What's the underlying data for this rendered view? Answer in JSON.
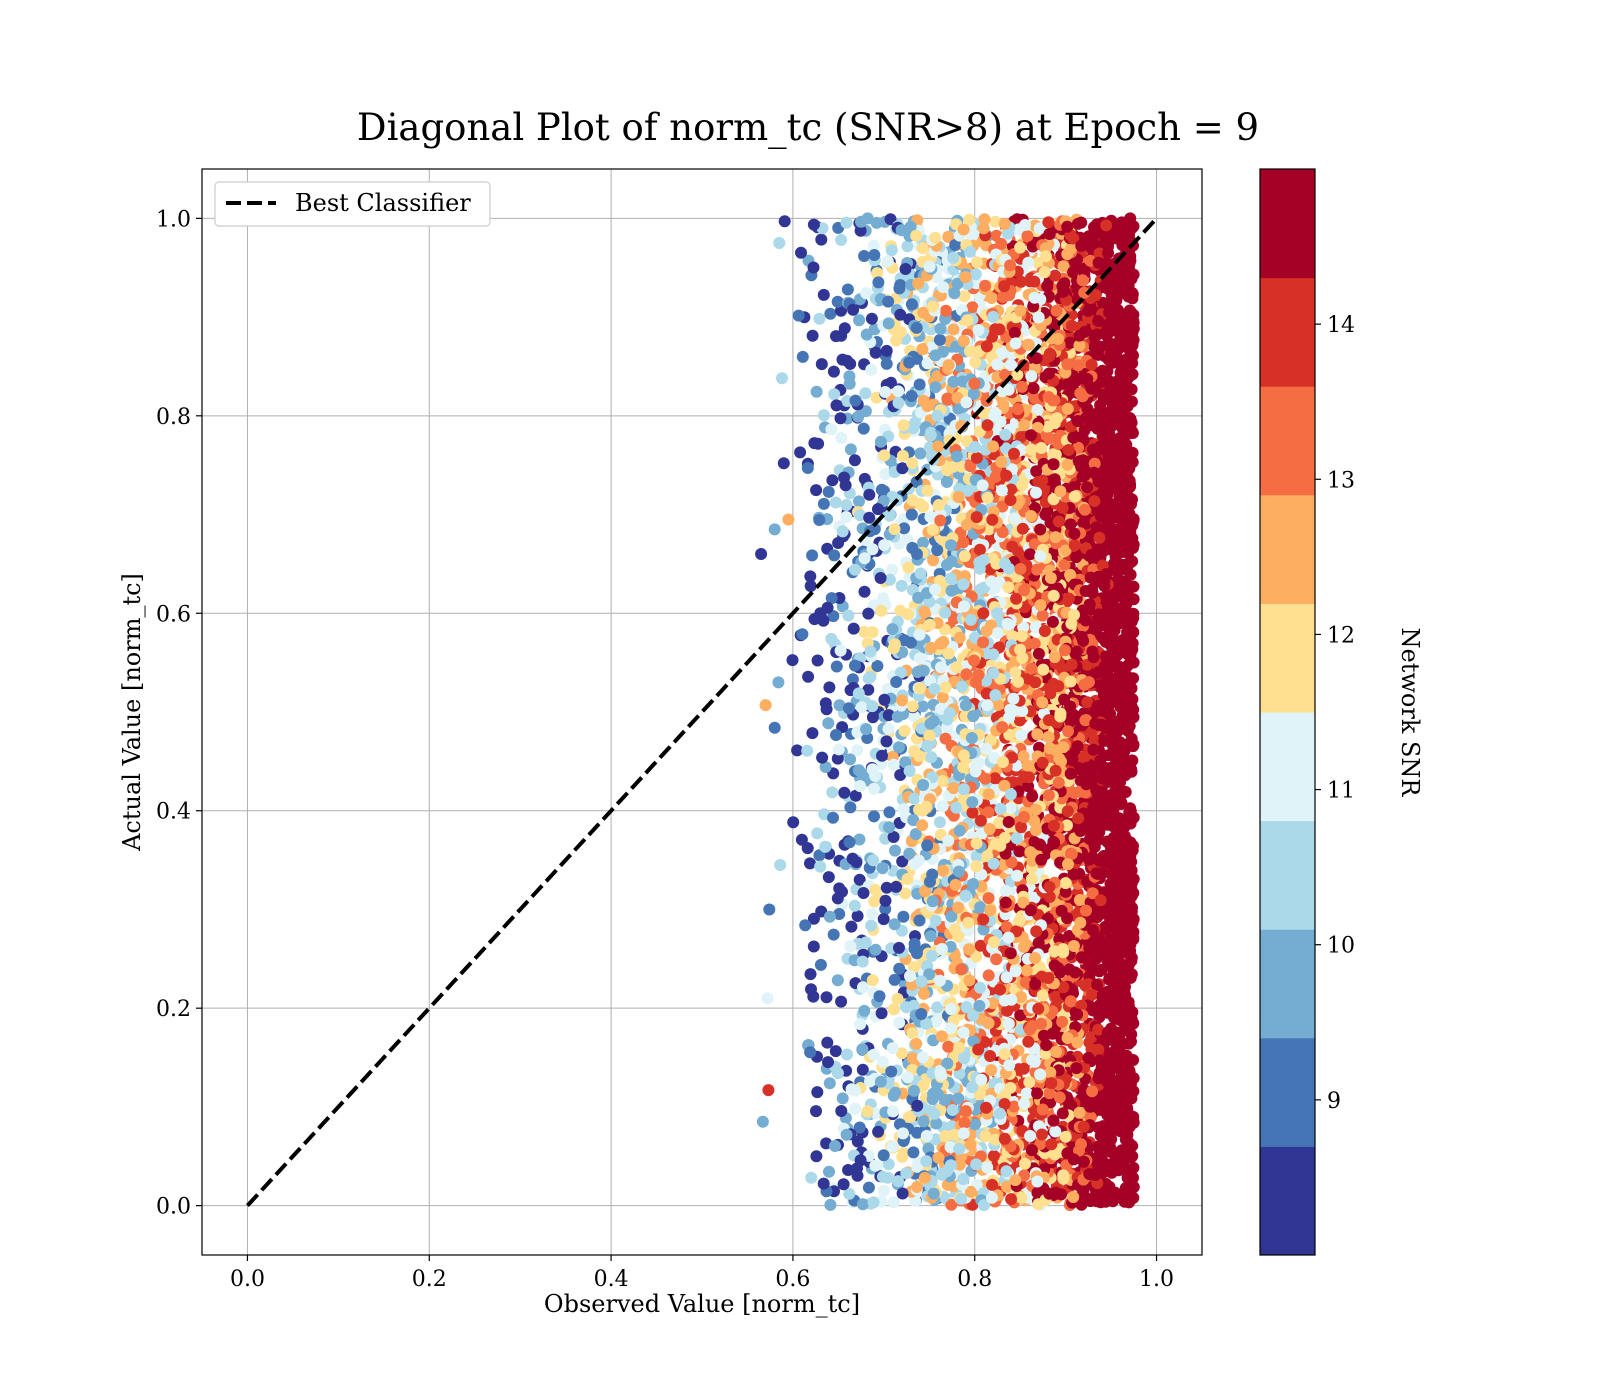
{
  "chart_data": {
    "type": "scatter",
    "title": "Diagonal Plot of norm_tc (SNR>8) at Epoch = 9",
    "xlabel": "Observed Value [norm_tc]",
    "ylabel": "Actual Value [norm_tc]",
    "xlim": [
      -0.05,
      1.05
    ],
    "ylim": [
      -0.05,
      1.05
    ],
    "xticks": [
      "0.0",
      "0.2",
      "0.4",
      "0.6",
      "0.8",
      "1.0"
    ],
    "yticks": [
      "0.0",
      "0.2",
      "0.4",
      "0.6",
      "0.8",
      "1.0"
    ],
    "xtick_values": [
      0,
      0.2,
      0.4,
      0.6,
      0.8,
      1.0
    ],
    "ytick_values": [
      0,
      0.2,
      0.4,
      0.6,
      0.8,
      1.0
    ],
    "grid": true,
    "legend": {
      "placement": "upper-left",
      "entries": [
        "Best Classifier"
      ]
    },
    "reference_line": {
      "name": "Best Classifier",
      "style": "dashed",
      "color": "#000000",
      "x": [
        0,
        1
      ],
      "y": [
        0,
        1
      ]
    },
    "colorbar": {
      "label": "Network SNR",
      "range": [
        8,
        15
      ],
      "tick_labels": [
        "9",
        "10",
        "11",
        "12",
        "13",
        "14"
      ],
      "tick_values": [
        9,
        10,
        11,
        12,
        13,
        14
      ],
      "colors": [
        "#313695",
        "#4575b4",
        "#74add1",
        "#abd9e9",
        "#e0f3f8",
        "#fee090",
        "#fdae61",
        "#f46d43",
        "#d73027",
        "#a50026"
      ]
    },
    "points": [
      {
        "x": 0.565,
        "y": 0.66,
        "snr": 8.3
      },
      {
        "x": 0.57,
        "y": 0.507,
        "snr": 12.6
      },
      {
        "x": 0.573,
        "y": 0.117,
        "snr": 14.2
      },
      {
        "x": 0.567,
        "y": 0.085,
        "snr": 9.6
      },
      {
        "x": 0.574,
        "y": 0.3,
        "snr": 9.1
      },
      {
        "x": 0.58,
        "y": 0.685,
        "snr": 9.8
      },
      {
        "x": 0.58,
        "y": 0.484,
        "snr": 9.2
      },
      {
        "x": 0.584,
        "y": 0.53,
        "snr": 9.9
      },
      {
        "x": 0.585,
        "y": 0.975,
        "snr": 10.4
      },
      {
        "x": 0.588,
        "y": 0.838,
        "snr": 10.4
      },
      {
        "x": 0.586,
        "y": 0.345,
        "snr": 10.4
      },
      {
        "x": 0.572,
        "y": 0.21,
        "snr": 11.2
      },
      {
        "x": 0.59,
        "y": 0.752,
        "snr": 8.4
      },
      {
        "x": 0.595,
        "y": 0.695,
        "snr": 12.5
      },
      {
        "x": 0.591,
        "y": 0.997,
        "snr": 8.5
      }
    ],
    "bulk_distribution": {
      "x_min": 0.59,
      "x_max": 0.975,
      "y_min": 0.0,
      "y_max": 1.0,
      "snr_at_x_min": 8.0,
      "snr_at_x_max": 15.0
    }
  }
}
